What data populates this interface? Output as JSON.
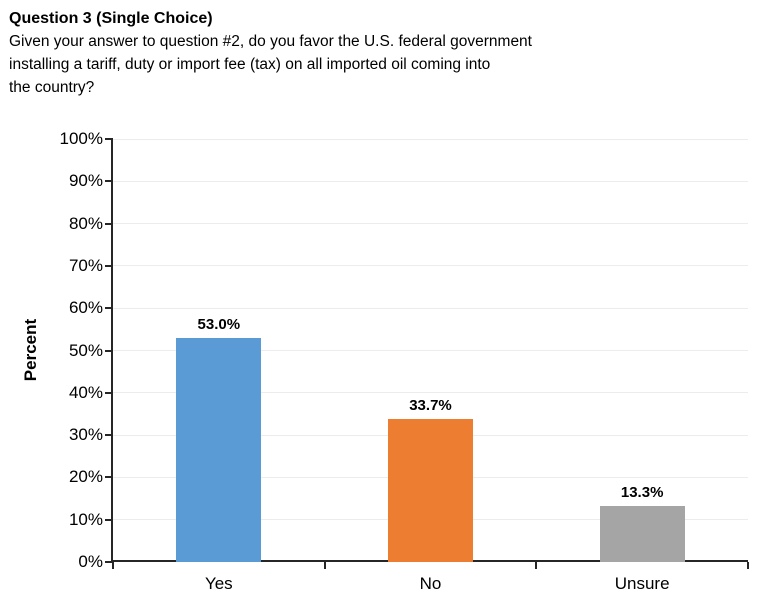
{
  "header": {
    "title": "Question 3 (Single Choice)",
    "question": "Given your answer to question #2, do you favor the U.S. federal government\ninstalling a tariff, duty or import fee (tax) on all imported oil coming into\nthe country?"
  },
  "chart_data": {
    "type": "bar",
    "title": "",
    "categories": [
      "Yes",
      "No",
      "Unsure"
    ],
    "values": [
      53.0,
      33.7,
      13.3
    ],
    "value_labels": [
      "53.0%",
      "33.7%",
      "13.3%"
    ],
    "bar_colors": [
      "#5B9BD5",
      "#ED7D31",
      "#A5A5A5"
    ],
    "xlabel": "",
    "ylabel": "Percent",
    "ylim": [
      0,
      100
    ],
    "ytick_step": 10,
    "ytick_labels": [
      "0%",
      "10%",
      "20%",
      "30%",
      "40%",
      "50%",
      "60%",
      "70%",
      "80%",
      "90%",
      "100%"
    ],
    "grid": "horizontal",
    "legend": "none",
    "axis_color": "#262626",
    "gridline_color": "#ECECEC",
    "label_color": "#000000"
  }
}
